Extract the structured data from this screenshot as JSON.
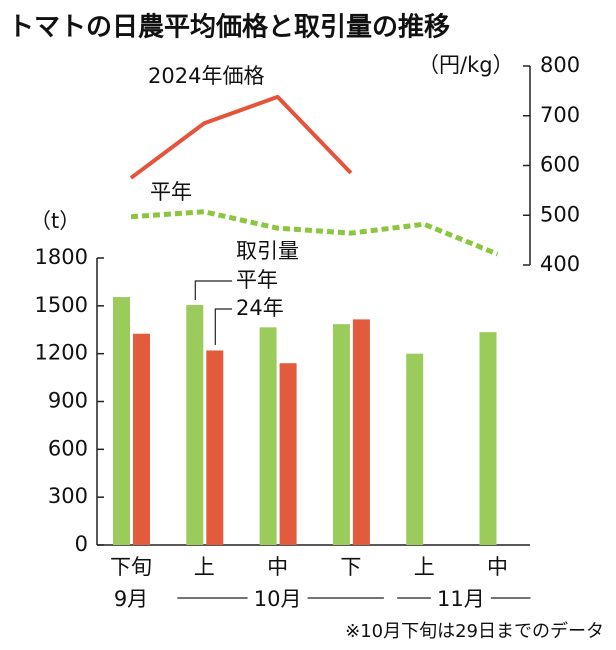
{
  "chart_data": {
    "type": "bar",
    "title": "トマトの日農平均価格と取引量の推移",
    "y_unit": "（t）",
    "y2_unit": "（円/kg）",
    "legend_title": "取引量",
    "note": "※10月下旬は29日までのデータ",
    "categories": [
      "下旬",
      "上",
      "中",
      "下",
      "上",
      "中"
    ],
    "groups": [
      {
        "label": "9月",
        "count": 1
      },
      {
        "label": "10月",
        "count": 3
      },
      {
        "label": "11月",
        "count": 2
      }
    ],
    "series": [
      {
        "name": "平年",
        "color": "#9bcb5a",
        "values": [
          1555,
          1505,
          1365,
          1385,
          1200,
          1335
        ]
      },
      {
        "name": "24年",
        "color": "#e25b3c",
        "values": [
          1325,
          1220,
          1140,
          1415,
          null,
          null
        ]
      }
    ],
    "line_series": [
      {
        "name": "2024年価格",
        "color": "#e5533a",
        "axis": "y2",
        "dashed": false,
        "values": [
          575,
          685,
          738,
          585,
          null,
          null
        ]
      },
      {
        "name": "平年",
        "color": "#8cc63f",
        "axis": "y2",
        "dashed": true,
        "values": [
          497,
          507,
          474,
          464,
          482,
          422
        ]
      }
    ],
    "ylim": [
      0,
      1800
    ],
    "yticks": [
      0,
      300,
      600,
      900,
      1200,
      1500,
      1800
    ],
    "y2lim": [
      400,
      800
    ],
    "y2ticks": [
      400,
      500,
      600,
      700,
      800
    ]
  }
}
